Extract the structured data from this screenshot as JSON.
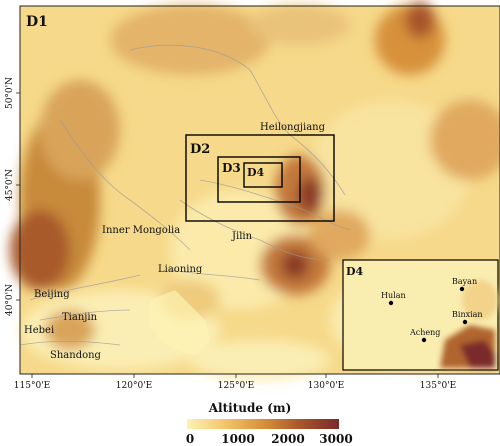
{
  "map": {
    "domains": [
      {
        "id": "d1",
        "label": "D1"
      },
      {
        "id": "d2",
        "label": "D2"
      },
      {
        "id": "d3",
        "label": "D3"
      },
      {
        "id": "d4",
        "label": "D4"
      }
    ],
    "inset": {
      "label": "D4",
      "cities": [
        {
          "id": "bayan",
          "name": "Bayan"
        },
        {
          "id": "hulan",
          "name": "Hulan"
        },
        {
          "id": "binxian",
          "name": "Binxian"
        },
        {
          "id": "acheng",
          "name": "Acheng"
        }
      ]
    },
    "place_labels": [
      {
        "id": "heilongjiang",
        "text": "Heilongjiang"
      },
      {
        "id": "inner-mongolia",
        "text": "Inner Mongolia"
      },
      {
        "id": "jilin",
        "text": "Jilin"
      },
      {
        "id": "liaoning",
        "text": "Liaoning"
      },
      {
        "id": "beijing",
        "text": "Beijing"
      },
      {
        "id": "tianjin",
        "text": "Tianjin"
      },
      {
        "id": "hebei",
        "text": "Hebei"
      },
      {
        "id": "shandong",
        "text": "Shandong"
      }
    ],
    "x_ticks": [
      "115°0'E",
      "120°0'E",
      "125°0'E",
      "130°0'E",
      "135°0'E"
    ],
    "y_ticks": [
      "40°0'N",
      "45°0'N",
      "50°0'N"
    ]
  },
  "legend": {
    "title": "Altitude (m)",
    "ticks": [
      "0",
      "1000",
      "2000",
      "3000"
    ],
    "colors": [
      "#fdf3b4",
      "#f3c56b",
      "#d7913a",
      "#a8542a",
      "#7a2a2a"
    ]
  }
}
